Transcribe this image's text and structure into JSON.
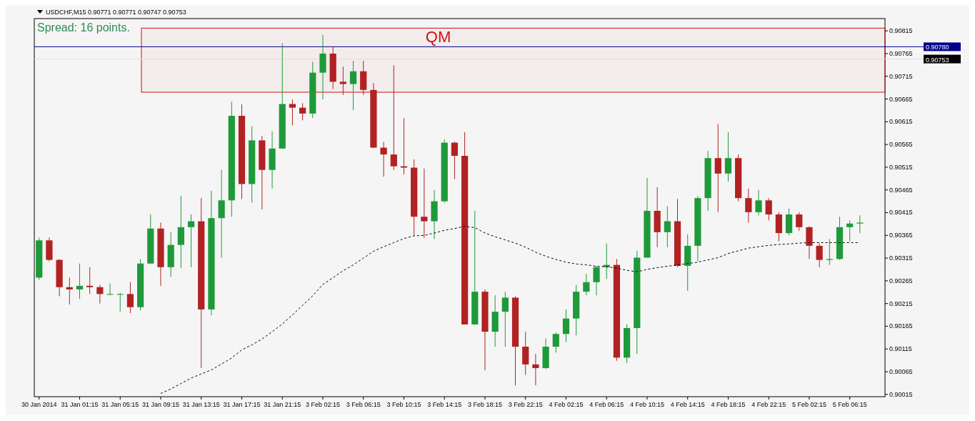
{
  "chart_data": {
    "type": "candlestick",
    "title": "USDCHF,M15 0.90771 0.90771 0.90747 0.90753",
    "categories": [
      "30 Jan 2014",
      null,
      null,
      null,
      "31 Jan 01:15",
      null,
      null,
      null,
      "31 Jan 05:15",
      null,
      null,
      null,
      "31 Jan 09:15",
      null,
      null,
      null,
      "31 Jan 13:15",
      null,
      null,
      null,
      "31 Jan 17:15",
      null,
      null,
      null,
      "31 Jan 21:15",
      null,
      null,
      null,
      "3 Feb 02:15",
      null,
      null,
      null,
      "3 Feb 06:15",
      null,
      null,
      null,
      "3 Feb 10:15",
      null,
      null,
      null,
      "3 Feb 14:15",
      null,
      null,
      null,
      "3 Feb 18:15",
      null,
      null,
      null,
      "3 Feb 22:15",
      null,
      null,
      null,
      "4 Feb 02:15",
      null,
      null,
      null,
      "4 Feb 06:15",
      null,
      null,
      null,
      "4 Feb 10:15",
      null,
      null,
      null,
      "4 Feb 14:15",
      null,
      null,
      null,
      "4 Feb 18:15",
      null,
      null,
      null,
      "4 Feb 22:15",
      null,
      null,
      null,
      "5 Feb 02:15",
      null,
      null,
      null,
      "5 Feb 06:15",
      null,
      null,
      null
    ],
    "ohlc": [
      [
        0.90272,
        0.9036,
        0.90267,
        0.90354
      ],
      [
        0.90354,
        0.9036,
        0.90308,
        0.90311
      ],
      [
        0.90311,
        0.90313,
        0.90231,
        0.90251
      ],
      [
        0.90251,
        0.90272,
        0.90213,
        0.90246
      ],
      [
        0.90246,
        0.90303,
        0.90225,
        0.90254
      ],
      [
        0.90254,
        0.90295,
        0.90236,
        0.90251
      ],
      [
        0.90251,
        0.90256,
        0.90215,
        0.90236
      ],
      [
        0.90236,
        0.90259,
        0.90233,
        0.90236
      ],
      [
        0.90236,
        0.90238,
        0.90197,
        0.90236
      ],
      [
        0.90236,
        0.90262,
        0.90194,
        0.90207
      ],
      [
        0.90207,
        0.90313,
        0.902,
        0.90303
      ],
      [
        0.90303,
        0.90411,
        0.90303,
        0.9038
      ],
      [
        0.9038,
        0.90393,
        0.90254,
        0.90295
      ],
      [
        0.90295,
        0.90372,
        0.90274,
        0.90344
      ],
      [
        0.90344,
        0.90452,
        0.90293,
        0.90383
      ],
      [
        0.90383,
        0.90411,
        0.90295,
        0.90396
      ],
      [
        0.90396,
        0.90447,
        0.90073,
        0.90202
      ],
      [
        0.90202,
        0.90463,
        0.90189,
        0.90403
      ],
      [
        0.90403,
        0.90509,
        0.90316,
        0.90442
      ],
      [
        0.90442,
        0.90659,
        0.90406,
        0.90628
      ],
      [
        0.90628,
        0.90653,
        0.90445,
        0.90478
      ],
      [
        0.90478,
        0.90605,
        0.90437,
        0.90574
      ],
      [
        0.90574,
        0.90584,
        0.90422,
        0.90509
      ],
      [
        0.90509,
        0.90594,
        0.90468,
        0.90556
      ],
      [
        0.90556,
        0.90788,
        0.90556,
        0.90654
      ],
      [
        0.90654,
        0.90664,
        0.90607,
        0.90646
      ],
      [
        0.90646,
        0.90656,
        0.90618,
        0.90633
      ],
      [
        0.90633,
        0.90747,
        0.90623,
        0.90723
      ],
      [
        0.90723,
        0.90806,
        0.90664,
        0.90765
      ],
      [
        0.90765,
        0.9078,
        0.90687,
        0.90703
      ],
      [
        0.90703,
        0.90736,
        0.90674,
        0.90698
      ],
      [
        0.90698,
        0.90749,
        0.90641,
        0.90726
      ],
      [
        0.90726,
        0.90749,
        0.90674,
        0.90685
      ],
      [
        0.90685,
        0.907,
        0.90558,
        0.90558
      ],
      [
        0.90558,
        0.90571,
        0.90494,
        0.90543
      ],
      [
        0.90543,
        0.90739,
        0.90509,
        0.90517
      ],
      [
        0.90517,
        0.90623,
        0.90499,
        0.90514
      ],
      [
        0.90514,
        0.90532,
        0.90365,
        0.90406
      ],
      [
        0.90406,
        0.90512,
        0.9036,
        0.90396
      ],
      [
        0.90396,
        0.90465,
        0.90357,
        0.9044
      ],
      [
        0.9044,
        0.90576,
        0.90437,
        0.90569
      ],
      [
        0.90569,
        0.90571,
        0.90489,
        0.9054
      ],
      [
        0.9054,
        0.90592,
        0.90169,
        0.90169
      ],
      [
        0.90169,
        0.90419,
        0.90169,
        0.90241
      ],
      [
        0.90241,
        0.90246,
        0.90068,
        0.90153
      ],
      [
        0.90153,
        0.90233,
        0.9012,
        0.90197
      ],
      [
        0.90197,
        0.90241,
        0.9012,
        0.90228
      ],
      [
        0.90228,
        0.90231,
        0.90035,
        0.9012
      ],
      [
        0.9012,
        0.90153,
        0.90058,
        0.90081
      ],
      [
        0.90081,
        0.90104,
        0.90035,
        0.90073
      ],
      [
        0.90073,
        0.90138,
        0.90071,
        0.9012
      ],
      [
        0.9012,
        0.90151,
        0.90107,
        0.90148
      ],
      [
        0.90148,
        0.90202,
        0.9013,
        0.90182
      ],
      [
        0.90182,
        0.90256,
        0.90145,
        0.90241
      ],
      [
        0.90241,
        0.9028,
        0.90233,
        0.90262
      ],
      [
        0.90262,
        0.90298,
        0.90233,
        0.90295
      ],
      [
        0.90295,
        0.90347,
        0.90269,
        0.903
      ],
      [
        0.903,
        0.90313,
        0.90089,
        0.90096
      ],
      [
        0.90096,
        0.90169,
        0.90084,
        0.90161
      ],
      [
        0.90161,
        0.90331,
        0.90104,
        0.90316
      ],
      [
        0.90316,
        0.90491,
        0.90316,
        0.90419
      ],
      [
        0.90419,
        0.90471,
        0.90339,
        0.90372
      ],
      [
        0.90372,
        0.90429,
        0.90339,
        0.90396
      ],
      [
        0.90396,
        0.90445,
        0.90295,
        0.90298
      ],
      [
        0.90298,
        0.90367,
        0.90243,
        0.90342
      ],
      [
        0.90342,
        0.90452,
        0.90308,
        0.90447
      ],
      [
        0.90447,
        0.90551,
        0.90419,
        0.90535
      ],
      [
        0.90535,
        0.9061,
        0.90416,
        0.90501
      ],
      [
        0.90501,
        0.90592,
        0.90483,
        0.90535
      ],
      [
        0.90535,
        0.90543,
        0.9044,
        0.90447
      ],
      [
        0.90447,
        0.90468,
        0.90393,
        0.90416
      ],
      [
        0.90416,
        0.90465,
        0.90409,
        0.90442
      ],
      [
        0.90442,
        0.90447,
        0.90398,
        0.90411
      ],
      [
        0.90411,
        0.90416,
        0.90352,
        0.9037
      ],
      [
        0.9037,
        0.90424,
        0.90365,
        0.90411
      ],
      [
        0.90411,
        0.90416,
        0.90375,
        0.90383
      ],
      [
        0.90383,
        0.90385,
        0.90313,
        0.90342
      ],
      [
        0.90342,
        0.90347,
        0.90295,
        0.90311
      ],
      [
        0.90311,
        0.90357,
        0.903,
        0.90313
      ],
      [
        0.90313,
        0.90406,
        0.90311,
        0.90383
      ],
      [
        0.90383,
        0.90398,
        0.90352,
        0.90391
      ],
      [
        0.90391,
        0.90409,
        0.9037,
        0.90393
      ],
      null,
      null
    ],
    "series": [
      {
        "type": "line",
        "color": "#000000",
        "line_style": "dashed",
        "values": [
          null,
          null,
          null,
          null,
          null,
          null,
          null,
          null,
          null,
          null,
          null,
          null,
          0.90017,
          0.90027,
          0.90039,
          0.90051,
          0.9006,
          0.90069,
          0.90082,
          0.90095,
          0.90113,
          0.90124,
          0.90137,
          0.90153,
          0.9017,
          0.9019,
          0.90211,
          0.90232,
          0.90257,
          0.90272,
          0.90287,
          0.903,
          0.90315,
          0.9033,
          0.9034,
          0.90349,
          0.90358,
          0.90364,
          0.90365,
          0.9037,
          0.90376,
          0.9038,
          0.90385,
          0.90382,
          0.9037,
          0.90362,
          0.90355,
          0.90348,
          0.90339,
          0.90328,
          0.90319,
          0.90312,
          0.90306,
          0.90302,
          0.903,
          0.90297,
          0.90296,
          0.90293,
          0.90288,
          0.90285,
          0.9029,
          0.90294,
          0.90297,
          0.903,
          0.90303,
          0.90306,
          0.90311,
          0.90316,
          0.90325,
          0.90331,
          0.90337,
          0.9034,
          0.90343,
          0.90345,
          0.90346,
          0.90348,
          0.90349,
          0.90349,
          0.90349,
          0.90349,
          0.90349,
          0.90349,
          null,
          null
        ]
      }
    ],
    "ylim": [
      0.9001,
      0.90842
    ],
    "yticks": [
      0.90015,
      0.90065,
      0.90115,
      0.90165,
      0.90215,
      0.90265,
      0.90315,
      0.90365,
      0.90415,
      0.90465,
      0.90515,
      0.90565,
      0.90615,
      0.90665,
      0.90715,
      0.90765,
      0.90815
    ],
    "ref_lines": [
      {
        "axis": "y",
        "value": 0.9078,
        "label": "0.90780",
        "color": "#00008b"
      },
      {
        "axis": "y",
        "value": 0.90753,
        "label": "0.90753",
        "color": "#e0e0e0"
      }
    ],
    "bands": [
      {
        "axis": "y",
        "from": 0.9068,
        "to": 0.90821,
        "label": "QM",
        "color": "#d01010"
      }
    ],
    "annotations": [
      "Spread: 16 points."
    ]
  }
}
